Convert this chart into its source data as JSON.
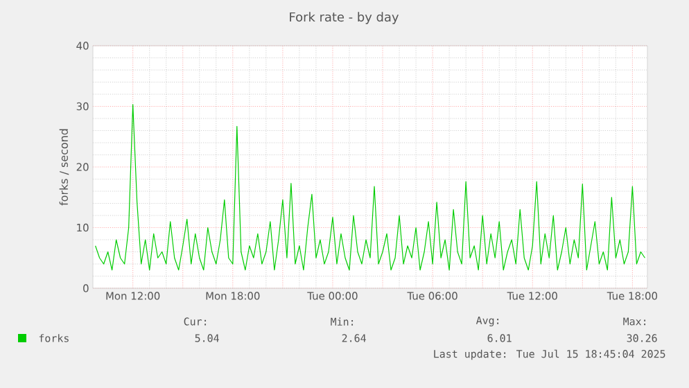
{
  "chart_data": {
    "type": "line",
    "title": "Fork rate - by day",
    "ylabel": "forks / second",
    "x": [
      "2025-07-14T09:45",
      "2025-07-14T10:00",
      "2025-07-14T10:15",
      "2025-07-14T10:30",
      "2025-07-14T10:45",
      "2025-07-14T11:00",
      "2025-07-14T11:15",
      "2025-07-14T11:30",
      "2025-07-14T11:45",
      "2025-07-14T12:00",
      "2025-07-14T12:15",
      "2025-07-14T12:30",
      "2025-07-14T12:45",
      "2025-07-14T13:00",
      "2025-07-14T13:15",
      "2025-07-14T13:30",
      "2025-07-14T13:45",
      "2025-07-14T14:00",
      "2025-07-14T14:15",
      "2025-07-14T14:30",
      "2025-07-14T14:45",
      "2025-07-14T15:00",
      "2025-07-14T15:15",
      "2025-07-14T15:30",
      "2025-07-14T15:45",
      "2025-07-14T16:00",
      "2025-07-14T16:15",
      "2025-07-14T16:30",
      "2025-07-14T16:45",
      "2025-07-14T17:00",
      "2025-07-14T17:15",
      "2025-07-14T17:30",
      "2025-07-14T17:45",
      "2025-07-14T18:00",
      "2025-07-14T18:15",
      "2025-07-14T18:30",
      "2025-07-14T18:45",
      "2025-07-14T19:00",
      "2025-07-14T19:15",
      "2025-07-14T19:30",
      "2025-07-14T19:45",
      "2025-07-14T20:00",
      "2025-07-14T20:15",
      "2025-07-14T20:30",
      "2025-07-14T20:45",
      "2025-07-14T21:00",
      "2025-07-14T21:15",
      "2025-07-14T21:30",
      "2025-07-14T21:45",
      "2025-07-14T22:00",
      "2025-07-14T22:15",
      "2025-07-14T22:30",
      "2025-07-14T22:45",
      "2025-07-14T23:00",
      "2025-07-14T23:15",
      "2025-07-14T23:30",
      "2025-07-14T23:45",
      "2025-07-15T00:00",
      "2025-07-15T00:15",
      "2025-07-15T00:30",
      "2025-07-15T00:45",
      "2025-07-15T01:00",
      "2025-07-15T01:15",
      "2025-07-15T01:30",
      "2025-07-15T01:45",
      "2025-07-15T02:00",
      "2025-07-15T02:15",
      "2025-07-15T02:30",
      "2025-07-15T02:45",
      "2025-07-15T03:00",
      "2025-07-15T03:15",
      "2025-07-15T03:30",
      "2025-07-15T03:45",
      "2025-07-15T04:00",
      "2025-07-15T04:15",
      "2025-07-15T04:30",
      "2025-07-15T04:45",
      "2025-07-15T05:00",
      "2025-07-15T05:15",
      "2025-07-15T05:30",
      "2025-07-15T05:45",
      "2025-07-15T06:00",
      "2025-07-15T06:15",
      "2025-07-15T06:30",
      "2025-07-15T06:45",
      "2025-07-15T07:00",
      "2025-07-15T07:15",
      "2025-07-15T07:30",
      "2025-07-15T07:45",
      "2025-07-15T08:00",
      "2025-07-15T08:15",
      "2025-07-15T08:30",
      "2025-07-15T08:45",
      "2025-07-15T09:00",
      "2025-07-15T09:15",
      "2025-07-15T09:30",
      "2025-07-15T09:45",
      "2025-07-15T10:00",
      "2025-07-15T10:15",
      "2025-07-15T10:30",
      "2025-07-15T10:45",
      "2025-07-15T11:00",
      "2025-07-15T11:15",
      "2025-07-15T11:30",
      "2025-07-15T11:45",
      "2025-07-15T12:00",
      "2025-07-15T12:15",
      "2025-07-15T12:30",
      "2025-07-15T12:45",
      "2025-07-15T13:00",
      "2025-07-15T13:15",
      "2025-07-15T13:30",
      "2025-07-15T13:45",
      "2025-07-15T14:00",
      "2025-07-15T14:15",
      "2025-07-15T14:30",
      "2025-07-15T14:45",
      "2025-07-15T15:00",
      "2025-07-15T15:15",
      "2025-07-15T15:30",
      "2025-07-15T15:45",
      "2025-07-15T16:00",
      "2025-07-15T16:15",
      "2025-07-15T16:30",
      "2025-07-15T16:45",
      "2025-07-15T17:00",
      "2025-07-15T17:15",
      "2025-07-15T17:30",
      "2025-07-15T17:45",
      "2025-07-15T18:00",
      "2025-07-15T18:15",
      "2025-07-15T18:30",
      "2025-07-15T18:45"
    ],
    "series": [
      {
        "name": "forks",
        "color": "#00cc00",
        "values": [
          7,
          5,
          4,
          6,
          3,
          8,
          5,
          4,
          10,
          30.3,
          14.2,
          4,
          8,
          3,
          9,
          5,
          6,
          4,
          11,
          5,
          3,
          7,
          11.4,
          4,
          9,
          5,
          3,
          10,
          6,
          4,
          8,
          14.6,
          5,
          4,
          26.7,
          6,
          3,
          7,
          5,
          9,
          4,
          6,
          11,
          3,
          8,
          14.6,
          5,
          17.3,
          4,
          7,
          3,
          10,
          15.5,
          5,
          8,
          4,
          6,
          11.7,
          4,
          9,
          5,
          3,
          12,
          6,
          4,
          8,
          5,
          16.8,
          4,
          6,
          9,
          3,
          5,
          12,
          4,
          7,
          5,
          10,
          3,
          6,
          11,
          4,
          14.2,
          5,
          8,
          3,
          13,
          6,
          4,
          17.6,
          5,
          7,
          3,
          12,
          4,
          9,
          5,
          11,
          3,
          6,
          8,
          4,
          13,
          5,
          3,
          7,
          17.6,
          4,
          9,
          5,
          12,
          3,
          6,
          10,
          4,
          8,
          5,
          17.2,
          3,
          7,
          11,
          4,
          6,
          3,
          15,
          5,
          8,
          4,
          6,
          16.8,
          4,
          6,
          5
        ]
      }
    ],
    "xlim": [
      "2025-07-14T09:36",
      "2025-07-15T18:54"
    ],
    "xticks": [
      {
        "value": "2025-07-14T12:00",
        "label": "Mon 12:00"
      },
      {
        "value": "2025-07-14T15:00",
        "label": null
      },
      {
        "value": "2025-07-14T18:00",
        "label": "Mon 18:00"
      },
      {
        "value": "2025-07-14T21:00",
        "label": null
      },
      {
        "value": "2025-07-15T00:00",
        "label": "Tue 00:00"
      },
      {
        "value": "2025-07-15T03:00",
        "label": null
      },
      {
        "value": "2025-07-15T06:00",
        "label": "Tue 06:00"
      },
      {
        "value": "2025-07-15T09:00",
        "label": null
      },
      {
        "value": "2025-07-15T12:00",
        "label": "Tue 12:00"
      },
      {
        "value": "2025-07-15T15:00",
        "label": null
      },
      {
        "value": "2025-07-15T18:00",
        "label": "Tue 18:00"
      }
    ],
    "ylim": [
      0,
      40
    ],
    "yticks": [
      0,
      10,
      20,
      30,
      40
    ],
    "grid": true,
    "legend": "bottom",
    "annotations": [
      "Cur:",
      "5.04",
      "Min:",
      "2.64",
      "Avg:",
      "6.01",
      "Max:",
      "30.26",
      "Last update: Tue Jul 15 18:45:04 2025"
    ]
  }
}
